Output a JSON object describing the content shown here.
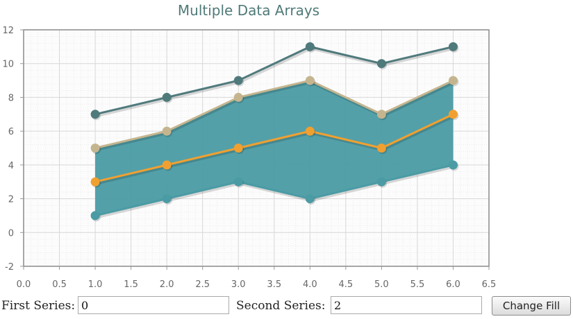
{
  "chart_data": {
    "type": "line",
    "title": "Multiple Data Arrays",
    "xlabel": "",
    "ylabel": "",
    "xlim": [
      0,
      6.5
    ],
    "ylim": [
      -2,
      12
    ],
    "x_ticks": [
      "0.0",
      "0.5",
      "1.0",
      "1.5",
      "2.0",
      "2.5",
      "3.0",
      "3.5",
      "4.0",
      "4.5",
      "5.0",
      "5.5",
      "6.0",
      "6.5"
    ],
    "y_ticks": [
      "-2",
      "0",
      "2",
      "4",
      "6",
      "8",
      "10",
      "12"
    ],
    "grid": true,
    "x": [
      1,
      2,
      3,
      4,
      5,
      6
    ],
    "series": [
      {
        "values": [
          1,
          2,
          3,
          2,
          3,
          4
        ],
        "color": "#4a9ba4"
      },
      {
        "values": [
          3,
          4,
          5,
          6,
          5,
          7
        ],
        "color": "#f0a030"
      },
      {
        "values": [
          5,
          6,
          8,
          9,
          7,
          9
        ],
        "color": "#c5b58f"
      },
      {
        "values": [
          7,
          8,
          9,
          11,
          10,
          11
        ],
        "color": "#4f7a7c"
      }
    ],
    "fill_between": {
      "first_series": 0,
      "second_series": 2,
      "color": "#4a9ba4"
    }
  },
  "controls": {
    "first_series_label": "First Series:",
    "first_series_value": "0",
    "second_series_label": "Second Series:",
    "second_series_value": "2",
    "change_fill_label": "Change Fill"
  }
}
